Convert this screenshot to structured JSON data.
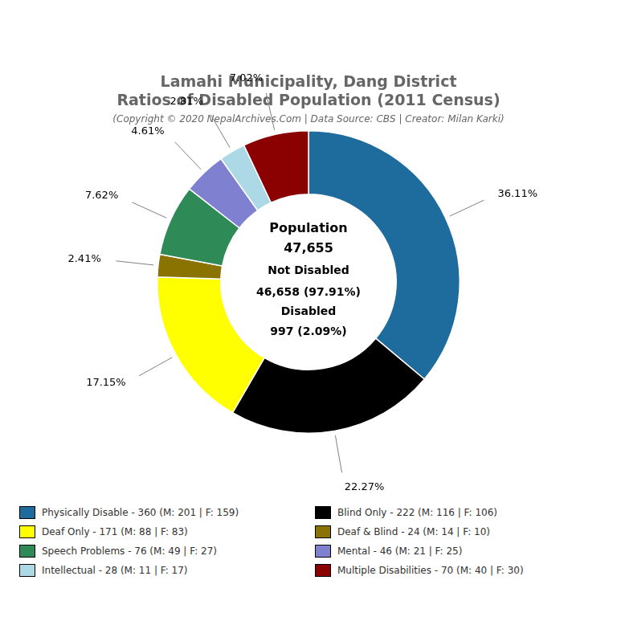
{
  "chart_data": {
    "type": "doughnut",
    "title": [
      "Lamahi Municipality, Dang District",
      "Ratios of Disabled Population (2011 Census)"
    ],
    "subtitle": "(Copyright © 2020 NepalArchives.Com | Data Source: CBS | Creator: Milan Karki)",
    "categories": [
      "Physically Disable - 360 (M: 201 | F: 159)",
      "Blind Only - 222 (M: 116 | F: 106)",
      "Deaf Only - 171 (M: 88 | F: 83)",
      "Deaf & Blind - 24 (M: 14 | F: 10)",
      "Speech Problems - 76 (M: 49 | F: 27)",
      "Mental - 46 (M: 21 | F: 25)",
      "Intellectual - 28 (M: 11 | F: 17)",
      "Multiple Disabilities - 70 (M: 40 | F: 30)"
    ],
    "values": [
      36.11,
      22.27,
      17.15,
      2.41,
      7.62,
      4.61,
      2.81,
      7.02
    ],
    "value_labels": [
      "36.11%",
      "22.27%",
      "17.15%",
      "2.41%",
      "7.62%",
      "4.61%",
      "2.81%",
      "7.02%"
    ],
    "colors": [
      "#1e6b9e",
      "#000000",
      "#ffff00",
      "#8b7300",
      "#2e8b57",
      "#8080d0",
      "#add8e6",
      "#8b0000"
    ],
    "data_labels": true,
    "legend": "bottom",
    "annotations": [
      "Population",
      "47,655",
      "Not Disabled",
      "46,658 (97.91%)",
      "Disabled",
      "997 (2.09%)"
    ]
  }
}
